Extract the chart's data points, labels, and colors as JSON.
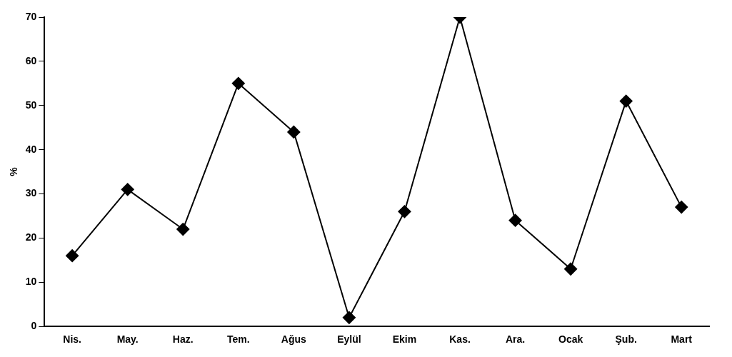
{
  "chart_data": {
    "type": "line",
    "ylabel": "%",
    "categories": [
      "Nis.",
      "May.",
      "Haz.",
      "Tem.",
      "Ağus",
      "Eylül",
      "Ekim",
      "Kas.",
      "Ara.",
      "Ocak",
      "Şub.",
      "Mart"
    ],
    "series": [
      {
        "color": "#000000",
        "values": [
          16,
          31,
          22,
          55,
          44,
          2,
          26,
          70,
          24,
          13,
          51,
          27
        ]
      }
    ],
    "ylim": [
      0,
      70
    ],
    "yticks": [
      0,
      10,
      20,
      30,
      40,
      50,
      60,
      70
    ],
    "grid": false,
    "legend": false,
    "marker": "diamond",
    "line_style": "solid"
  }
}
